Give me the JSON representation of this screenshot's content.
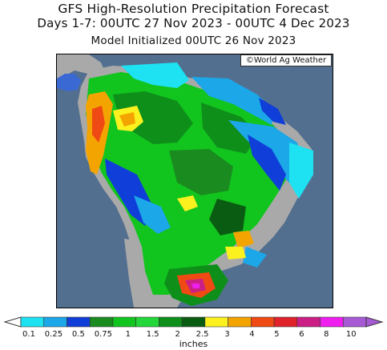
{
  "title": {
    "line1": "GFS High-Resolution Precipitation Forecast",
    "line2": "Days 1-7: 00UTC 27 Nov 2023 - 00UTC 4 Dec 2023",
    "line3": "Model Initialized 00UTC 26 Nov 2023"
  },
  "credit": "©World Ag Weather",
  "colorbar": {
    "units": "inches",
    "ticks": [
      "0.1",
      "0.25",
      "0.5",
      "0.75",
      "1",
      "1.5",
      "2",
      "2.5",
      "3",
      "4",
      "5",
      "6",
      "8",
      "10"
    ],
    "colors": [
      "#1ee1f2",
      "#1ba7e8",
      "#0f3ed8",
      "#1a8b1f",
      "#12c41e",
      "#23d639",
      "#0e8f1a",
      "#0a5c12",
      "#fbf11f",
      "#f4a400",
      "#ef4a13",
      "#e0222b",
      "#cb1f86",
      "#ee1fee",
      "#a65bd5"
    ]
  },
  "map": {
    "ocean_color": "#536f8f",
    "land_gray": "#a9a9a9"
  }
}
